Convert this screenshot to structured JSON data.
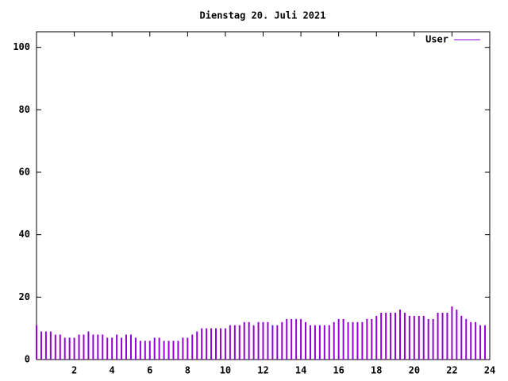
{
  "chart_data": {
    "type": "impulses",
    "title": "Dienstag 20. Juli 2021",
    "x": [
      0,
      0.25,
      0.5,
      0.75,
      1,
      1.25,
      1.5,
      1.75,
      2,
      2.25,
      2.5,
      2.75,
      3,
      3.25,
      3.5,
      3.75,
      4,
      4.25,
      4.5,
      4.75,
      5,
      5.25,
      5.5,
      5.75,
      6,
      6.25,
      6.5,
      6.75,
      7,
      7.25,
      7.5,
      7.75,
      8,
      8.25,
      8.5,
      8.75,
      9,
      9.25,
      9.5,
      9.75,
      10,
      10.25,
      10.5,
      10.75,
      11,
      11.25,
      11.5,
      11.75,
      12,
      12.25,
      12.5,
      12.75,
      13,
      13.25,
      13.5,
      13.75,
      14,
      14.25,
      14.5,
      14.75,
      15,
      15.25,
      15.5,
      15.75,
      16,
      16.25,
      16.5,
      16.75,
      17,
      17.25,
      17.5,
      17.75,
      18,
      18.25,
      18.5,
      18.75,
      19,
      19.25,
      19.5,
      19.75,
      20,
      20.25,
      20.5,
      20.75,
      21,
      21.25,
      21.5,
      21.75,
      22,
      22.25,
      22.5,
      22.75,
      23,
      23.25,
      23.5,
      23.75
    ],
    "series": [
      {
        "name": "User",
        "color": "#9400d3",
        "values": [
          11,
          9,
          9,
          9,
          8,
          8,
          7,
          7,
          7,
          8,
          8,
          9,
          8,
          8,
          8,
          7,
          7,
          8,
          7,
          8,
          8,
          7,
          6,
          6,
          6,
          7,
          7,
          6,
          6,
          6,
          6,
          7,
          7,
          8,
          9,
          10,
          10,
          10,
          10,
          10,
          10,
          11,
          11,
          11,
          12,
          12,
          11,
          12,
          12,
          12,
          11,
          11,
          12,
          13,
          13,
          13,
          13,
          12,
          11,
          11,
          11,
          11,
          11,
          12,
          13,
          13,
          12,
          12,
          12,
          12,
          13,
          13,
          14,
          15,
          15,
          15,
          15,
          16,
          15,
          14,
          14,
          14,
          14,
          13,
          13,
          15,
          15,
          15,
          17,
          16,
          14,
          13,
          12,
          12,
          11,
          11
        ]
      }
    ],
    "xlim": [
      0,
      24
    ],
    "xticks": [
      2,
      4,
      6,
      8,
      10,
      12,
      14,
      16,
      18,
      20,
      22,
      24
    ],
    "ylim": [
      0,
      105
    ],
    "yticks": [
      0,
      20,
      40,
      60,
      80,
      100
    ],
    "legend": "top-right"
  }
}
